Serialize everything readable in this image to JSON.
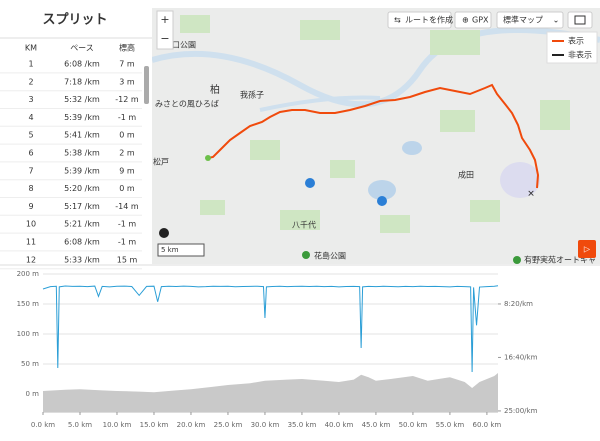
{
  "splits": {
    "title": "スプリット",
    "columns": [
      "KM",
      "ペース",
      "標高"
    ],
    "rows": [
      [
        "1",
        "6:08 /km",
        "7 m"
      ],
      [
        "2",
        "7:18 /km",
        "3 m"
      ],
      [
        "3",
        "5:32 /km",
        "-12 m"
      ],
      [
        "4",
        "5:39 /km",
        "-1 m"
      ],
      [
        "5",
        "5:41 /km",
        "0 m"
      ],
      [
        "6",
        "5:38 /km",
        "2 m"
      ],
      [
        "7",
        "5:39 /km",
        "9 m"
      ],
      [
        "8",
        "5:20 /km",
        "0 m"
      ],
      [
        "9",
        "5:17 /km",
        "-14 m"
      ],
      [
        "10",
        "5:21 /km",
        "-1 m"
      ],
      [
        "11",
        "6:08 /km",
        "-1 m"
      ],
      [
        "12",
        "5:33 /km",
        "15 m"
      ]
    ]
  },
  "map": {
    "buttons": {
      "route": "ルートを作成",
      "gpx": "GPX",
      "maptype": "標準マップ"
    },
    "legend": [
      "表示",
      "非表示"
    ],
    "scale": "5 km",
    "labels": [
      "口公園",
      "柏",
      "我孫子",
      "みさとの風ひろば",
      "松戸",
      "成田",
      "八千代",
      "花島公園",
      "有野実苑オートキャ"
    ]
  },
  "chart_data": {
    "type": "line",
    "xlim": [
      0,
      61.5
    ],
    "ylim": [
      -30,
      200
    ],
    "y2lim": [
      1510,
      220
    ],
    "xticks": [
      {
        "value": 0,
        "label": "0.0 km"
      },
      {
        "value": 5,
        "label": "5.0 km"
      },
      {
        "value": 10,
        "label": "10.0 km"
      },
      {
        "value": 15,
        "label": "15.0 km"
      },
      {
        "value": 20,
        "label": "20.0 km"
      },
      {
        "value": 25,
        "label": "25.0 km"
      },
      {
        "value": 30,
        "label": "30.0 km"
      },
      {
        "value": 35,
        "label": "35.0 km"
      },
      {
        "value": 40,
        "label": "40.0 km"
      },
      {
        "value": 45,
        "label": "45.0 km"
      },
      {
        "value": 50,
        "label": "50.0 km"
      },
      {
        "value": 55,
        "label": "55.0 km"
      },
      {
        "value": 60,
        "label": "60.0 km"
      }
    ],
    "yticks": [
      {
        "value": 200,
        "label": "200 m"
      },
      {
        "value": 150,
        "label": "150 m"
      },
      {
        "value": 100,
        "label": "100 m"
      },
      {
        "value": 50,
        "label": "50 m"
      },
      {
        "value": 0,
        "label": "0 m"
      }
    ],
    "y2ticks": [
      {
        "value": 500,
        "label": "8:20/km"
      },
      {
        "value": 1000,
        "label": "16:40/km"
      },
      {
        "value": 1500,
        "label": "25:00/km"
      }
    ],
    "grid": true,
    "series": [
      {
        "color": "#c9c9c9",
        "area": true,
        "x": [
          0,
          3,
          5,
          8,
          10,
          13,
          15,
          18,
          20,
          23,
          25,
          28,
          30,
          33,
          35,
          38,
          40,
          42,
          43,
          44,
          45,
          47,
          50,
          51,
          52,
          54,
          55,
          56,
          57,
          58,
          59,
          60,
          61,
          61.5
        ],
        "values": [
          5,
          7,
          8,
          6,
          5,
          4,
          3,
          6,
          8,
          12,
          15,
          18,
          22,
          24,
          25,
          22,
          20,
          24,
          32,
          28,
          22,
          25,
          30,
          26,
          22,
          26,
          28,
          24,
          20,
          10,
          20,
          25,
          30,
          35
        ]
      },
      {
        "color": "#2b9ed6",
        "axis": "y2",
        "x": [
          0,
          1,
          1.8,
          2,
          2.2,
          3,
          4,
          5,
          6,
          7,
          7.5,
          8,
          9,
          10,
          11,
          12,
          13,
          14,
          15,
          15.5,
          16,
          17,
          18,
          19,
          20,
          21,
          22,
          23,
          24,
          25,
          26,
          27,
          28,
          29,
          29.8,
          30,
          30.2,
          31,
          32,
          33,
          34,
          35,
          36,
          37,
          38,
          39,
          40,
          41,
          42,
          42.8,
          43,
          43.2,
          44,
          45,
          46,
          47,
          48,
          49,
          50,
          51,
          52,
          53,
          54,
          55,
          56,
          57,
          57.8,
          58,
          58.2,
          58.6,
          59,
          60,
          61,
          61.5
        ],
        "values": [
          360,
          338,
          335,
          1099,
          340,
          332,
          336,
          334,
          338,
          333,
          430,
          336,
          340,
          335,
          333,
          337,
          420,
          336,
          334,
          480,
          338,
          335,
          337,
          333,
          336,
          340,
          338,
          334,
          336,
          335,
          339,
          337,
          336,
          334,
          338,
          631,
          340,
          337,
          335,
          338,
          336,
          334,
          337,
          335,
          338,
          336,
          340,
          337,
          336,
          338,
          912,
          340,
          336,
          338,
          335,
          337,
          339,
          336,
          338,
          335,
          337,
          336,
          338,
          340,
          336,
          338,
          340,
          1136,
          345,
          700,
          342,
          338,
          335,
          330
        ]
      }
    ]
  }
}
